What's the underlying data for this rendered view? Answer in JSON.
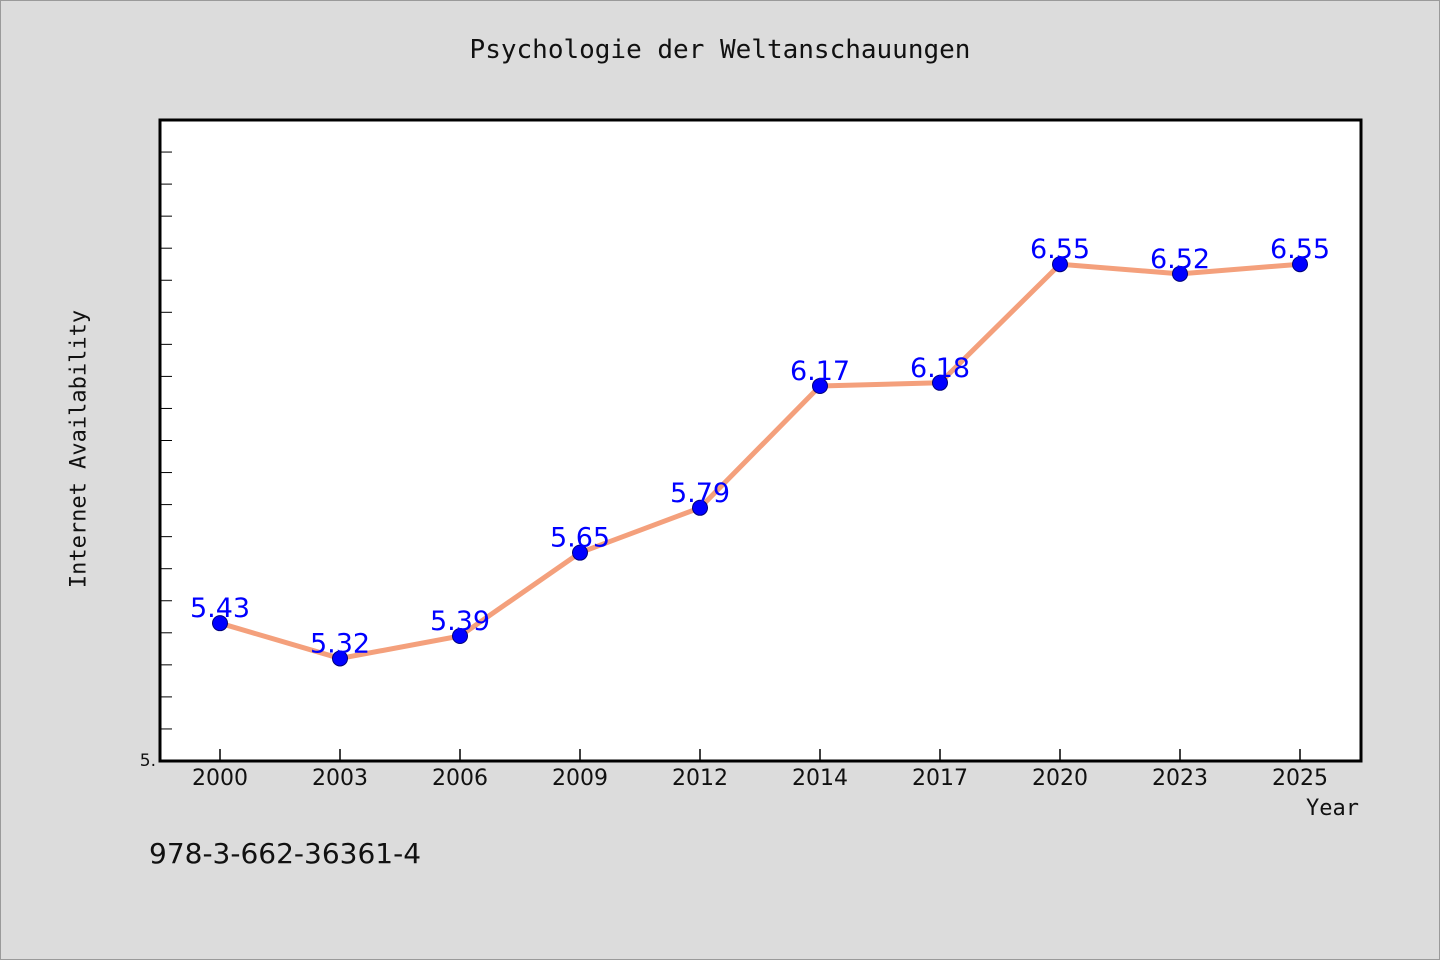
{
  "chart_data": {
    "type": "line",
    "title": "Psychologie der Weltanschauungen",
    "xlabel": "Year",
    "ylabel": "Internet Availability",
    "categories": [
      "2000",
      "2003",
      "2006",
      "2009",
      "2012",
      "2014",
      "2017",
      "2020",
      "2023",
      "2025"
    ],
    "series": [
      {
        "values": [
          5.43,
          5.32,
          5.39,
          5.65,
          5.79,
          6.17,
          6.18,
          6.55,
          6.52,
          6.55
        ],
        "data_labels": [
          "5.43",
          "5.32",
          "5.39",
          "5.65",
          "5.79",
          "6.17",
          "6.18",
          "6.55",
          "6.52",
          "6.55"
        ],
        "line_color": "#f4a07c",
        "marker_color": "#0000ff",
        "label_color": "#0000ff"
      }
    ],
    "ylim": [
      5.0,
      7.0
    ],
    "y_tick_labels": [
      "5."
    ],
    "grid": false,
    "legend": "none"
  },
  "footer_text": "978-3-662-36361-4",
  "colors": {
    "background": "#dcdcdc",
    "plot_background": "#ffffff",
    "axis": "#000000"
  }
}
